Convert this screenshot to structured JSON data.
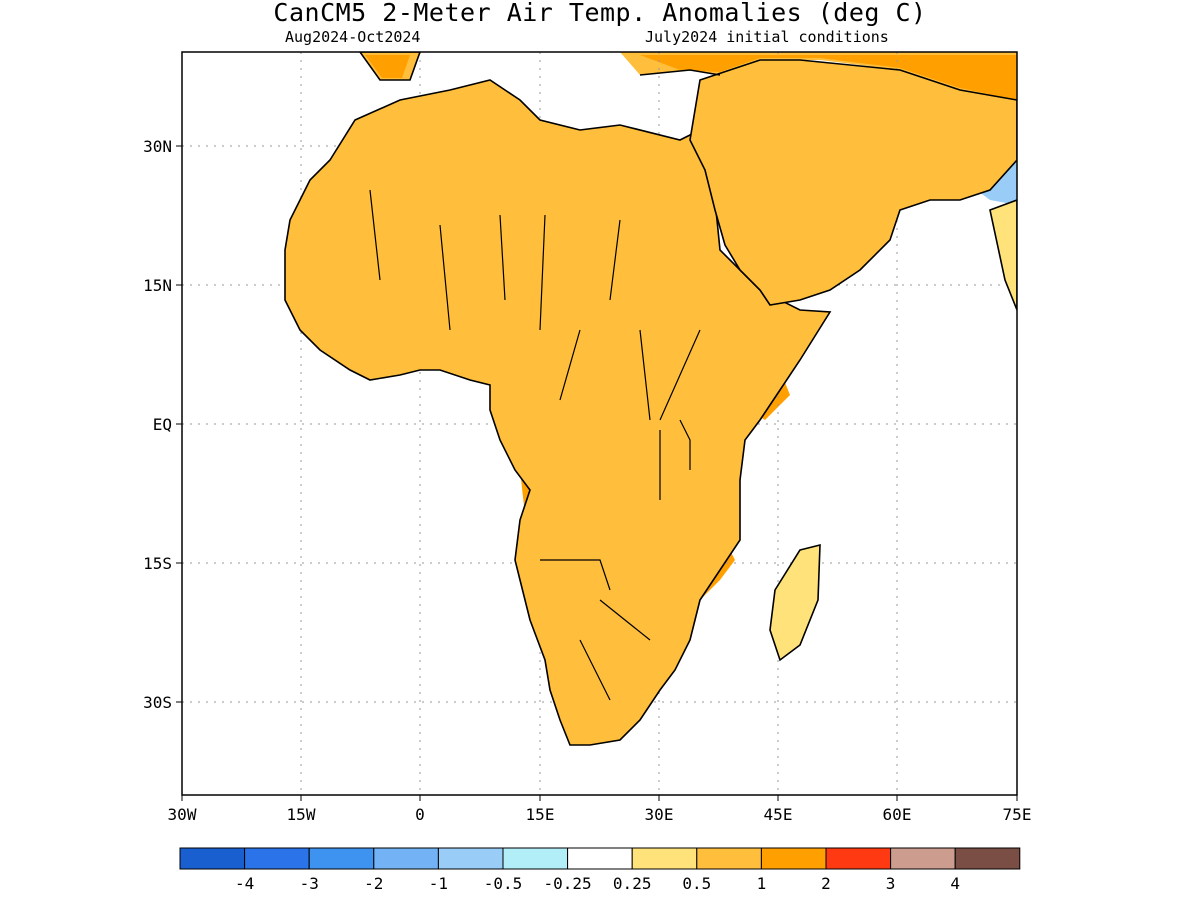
{
  "title": "CanCM5 2-Meter Air Temp. Anomalies (deg C)",
  "period": "Aug2024-Oct2024",
  "initial_conditions": "July2024 initial conditions",
  "axes": {
    "x_ticks": [
      "30W",
      "15W",
      "0",
      "15E",
      "30E",
      "45E",
      "60E",
      "75E"
    ],
    "y_ticks": [
      "30N",
      "15N",
      "EQ",
      "15S",
      "30S"
    ]
  },
  "legend": {
    "colors": [
      "#1a5fd0",
      "#2a73e8",
      "#3f93f0",
      "#73b3f5",
      "#99cdf7",
      "#b2eef8",
      "#ffffff",
      "#ffe27a",
      "#ffbe3c",
      "#ffa000",
      "#ff3a12",
      "#cc9c8e",
      "#7a4e44"
    ],
    "labels": [
      "-4",
      "-3",
      "-2",
      "-1",
      "-0.5",
      "-0.25",
      "0.25",
      "0.5",
      "1",
      "2",
      "3",
      "4"
    ]
  },
  "map_colors": {
    "lv1": "#ffe27a",
    "lv2": "#ffbe3c",
    "lv3": "#ffa000",
    "lv4": "#ff3a12",
    "cool1": "#b2eef8",
    "cool2": "#99cdf7",
    "cool3": "#73b3f5"
  }
}
